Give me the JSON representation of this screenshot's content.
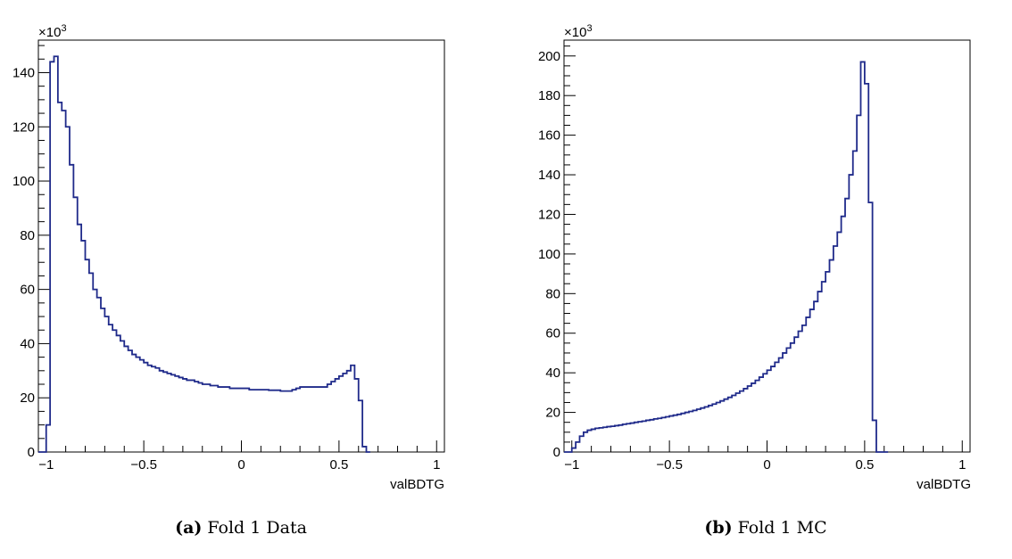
{
  "chart_data": [
    {
      "type": "histogram",
      "caption_label": "(a)",
      "caption_text": "Fold 1 Data",
      "xlabel": "valBDTG",
      "y_multiplier": "×10",
      "y_exponent": "3",
      "xlim": [
        -1.04,
        1.04
      ],
      "ylim": [
        0,
        152
      ],
      "xticks": [
        -1,
        -0.5,
        0,
        0.5,
        1
      ],
      "xtick_labels": [
        "−1",
        "−0.5",
        "0",
        "0.5",
        "1"
      ],
      "yticks": [
        0,
        20,
        40,
        60,
        80,
        100,
        120,
        140
      ],
      "ytick_labels": [
        "0",
        "20",
        "40",
        "60",
        "80",
        "100",
        "120",
        "140"
      ],
      "bin_start": -1.04,
      "bin_width": 0.02,
      "values": [
        0,
        0,
        10,
        144,
        146,
        129,
        126,
        120,
        106,
        94,
        84,
        78,
        71,
        66,
        60,
        57,
        53,
        50,
        47,
        45,
        43,
        41,
        39,
        37.5,
        36,
        35,
        34,
        33,
        32,
        31.5,
        31,
        30,
        29.5,
        29,
        28.5,
        28,
        27.5,
        27,
        26.5,
        26.5,
        26,
        25.5,
        25,
        25,
        24.5,
        24.5,
        24,
        24,
        24,
        23.5,
        23.5,
        23.5,
        23.5,
        23.5,
        23,
        23,
        23,
        23,
        23,
        22.8,
        22.8,
        22.8,
        22.5,
        22.5,
        22.5,
        23,
        23.5,
        24,
        24,
        24,
        24,
        24,
        24,
        24,
        25,
        26,
        27,
        28,
        29,
        30,
        32,
        27,
        19,
        2,
        0
      ],
      "line_color": "#1f2a8a"
    },
    {
      "type": "histogram",
      "caption_label": "(b)",
      "caption_text": "Fold 1 MC",
      "xlabel": "valBDTG",
      "y_multiplier": "×10",
      "y_exponent": "3",
      "xlim": [
        -1.04,
        1.04
      ],
      "ylim": [
        0,
        208
      ],
      "xticks": [
        -1,
        -0.5,
        0,
        0.5,
        1
      ],
      "xtick_labels": [
        "−1",
        "−0.5",
        "0",
        "0.5",
        "1"
      ],
      "yticks": [
        0,
        20,
        40,
        60,
        80,
        100,
        120,
        140,
        160,
        180,
        200
      ],
      "ytick_labels": [
        "0",
        "20",
        "40",
        "60",
        "80",
        "100",
        "120",
        "140",
        "160",
        "180",
        "200"
      ],
      "bin_start": -1.04,
      "bin_width": 0.02,
      "values": [
        0,
        0,
        2,
        5,
        8,
        10,
        11,
        11.5,
        12,
        12.2,
        12.5,
        12.8,
        13,
        13.3,
        13.6,
        14,
        14.3,
        14.6,
        15,
        15.3,
        15.6,
        16,
        16.3,
        16.7,
        17,
        17.4,
        17.8,
        18.2,
        18.6,
        19,
        19.5,
        20,
        20.5,
        21,
        21.6,
        22.2,
        22.8,
        23.5,
        24.2,
        25,
        25.8,
        26.7,
        27.6,
        28.6,
        29.7,
        30.8,
        32,
        33.3,
        34.7,
        36.2,
        37.8,
        39.5,
        41.3,
        43.2,
        45.3,
        47.5,
        50,
        52.5,
        55,
        58,
        61,
        64,
        68,
        72,
        76,
        81,
        86,
        91,
        97,
        104,
        111,
        119,
        128,
        140,
        152,
        170,
        197,
        186,
        126,
        16,
        0,
        0,
        0
      ],
      "line_color": "#1f2a8a"
    }
  ]
}
